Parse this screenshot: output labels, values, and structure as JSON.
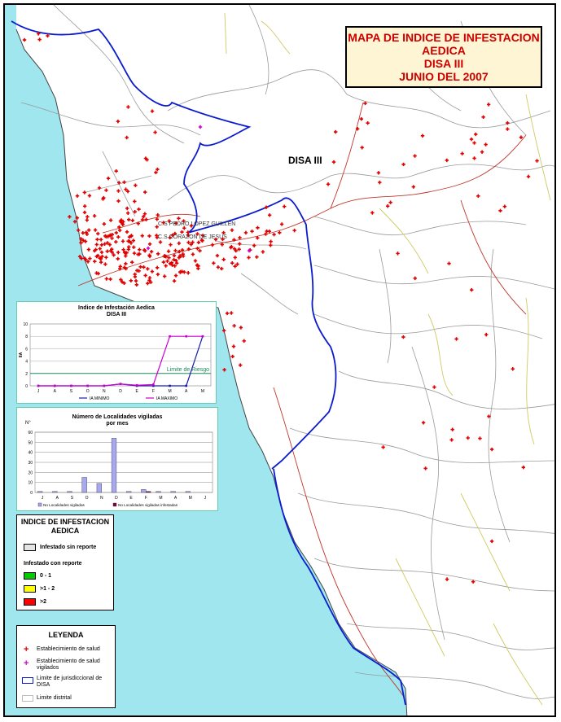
{
  "map": {
    "title_lines": [
      "MAPA DE INDICE DE INFESTACION",
      "AEDICA",
      "DISA III",
      "JUNIO DEL 2007"
    ],
    "region_label": "DISA III",
    "places": [
      "C.S PEDRO LOPEZ GUILLEN",
      "C.S CORAZON DE JESUS"
    ],
    "colors": {
      "sea": "#9fe6ef",
      "boundary": "#0b1ccf",
      "district": "#9a9a9a",
      "road": "#c0362c",
      "path": "#cfca64",
      "marker": "#e00000",
      "marker_vigilado": "#d000d0"
    }
  },
  "chart_indice": {
    "title_lines": [
      "Indice de Infestación Aedica",
      "DISA III"
    ],
    "ylabel": "IIA",
    "limit_label": "Limite de Riesgo",
    "legend": [
      "IA MINIMO",
      "IA MAXIMO"
    ]
  },
  "chart_localidades": {
    "title_lines": [
      "Número de Localidades vigiladas",
      "por mes"
    ],
    "ylabel": "N°",
    "legend": [
      "No Localidades vigiladas",
      "No Localidades vigiladas infestadas"
    ]
  },
  "chart_data": [
    {
      "type": "line",
      "title": "Indice de Infestación Aedica DISA III",
      "xlabel": "",
      "ylabel": "IIA",
      "categories": [
        "J",
        "A",
        "S",
        "O",
        "N",
        "D",
        "E",
        "F",
        "M",
        "A",
        "M"
      ],
      "ylim": [
        0,
        10
      ],
      "yticks": [
        0,
        2,
        4,
        6,
        8,
        10
      ],
      "grid": true,
      "legend_position": "bottom",
      "reference_line": {
        "label": "Limite de Riesgo",
        "value": 2
      },
      "series": [
        {
          "name": "IA MINIMO",
          "values": [
            0,
            0,
            0,
            0,
            0,
            0.3,
            0,
            0,
            0,
            0,
            8
          ],
          "color": "#1a1ab0"
        },
        {
          "name": "IA MAXIMO",
          "values": [
            0,
            0,
            0,
            0,
            0,
            0.3,
            0.1,
            0.2,
            8,
            8,
            8
          ],
          "color": "#cc00cc"
        }
      ]
    },
    {
      "type": "bar",
      "title": "Número de Localidades vigiladas por mes",
      "ylabel": "N°",
      "categories": [
        "J",
        "A",
        "S",
        "O",
        "N",
        "D",
        "E",
        "F",
        "M",
        "A",
        "M",
        "J"
      ],
      "ylim": [
        0,
        60
      ],
      "yticks": [
        0,
        10,
        20,
        30,
        40,
        50,
        60
      ],
      "grid": true,
      "legend_position": "bottom",
      "series": [
        {
          "name": "No Localidades vigiladas",
          "values": [
            1,
            1,
            1,
            15,
            9,
            54,
            1,
            3,
            1,
            1,
            1,
            0
          ],
          "color": "#a8a8f0"
        },
        {
          "name": "No Localidades vigiladas infestadas",
          "values": [
            0,
            0,
            0,
            0,
            0,
            0,
            0,
            1,
            0,
            0,
            0,
            0
          ],
          "color": "#800040"
        }
      ]
    }
  ],
  "legend_indice": {
    "title_lines": [
      "INDICE DE INFESTACION",
      "AEDICA"
    ],
    "sin_reporte": "Infestado sin reporte",
    "con_reporte": "Infestado con reporte",
    "ranges": [
      {
        "label": "0 - 1",
        "color": "#00cc00"
      },
      {
        "label": ">1 - 2",
        "color": "#ffff00"
      },
      {
        "label": ">2",
        "color": "#ff0000"
      }
    ],
    "sin_reporte_color": "#e4e4e4"
  },
  "leyenda": {
    "title": "LEYENDA",
    "items": [
      {
        "label": "Establecimiento de salud",
        "icon": "red-cross-icon"
      },
      {
        "label": "Establecimiento de salud vigilados",
        "icon": "magenta-cross-icon"
      },
      {
        "label": "Limite de jurisdiccional de DISA",
        "icon": "blue-boundary-icon"
      },
      {
        "label": "Limite distrital",
        "icon": "gray-boundary-icon"
      }
    ]
  }
}
